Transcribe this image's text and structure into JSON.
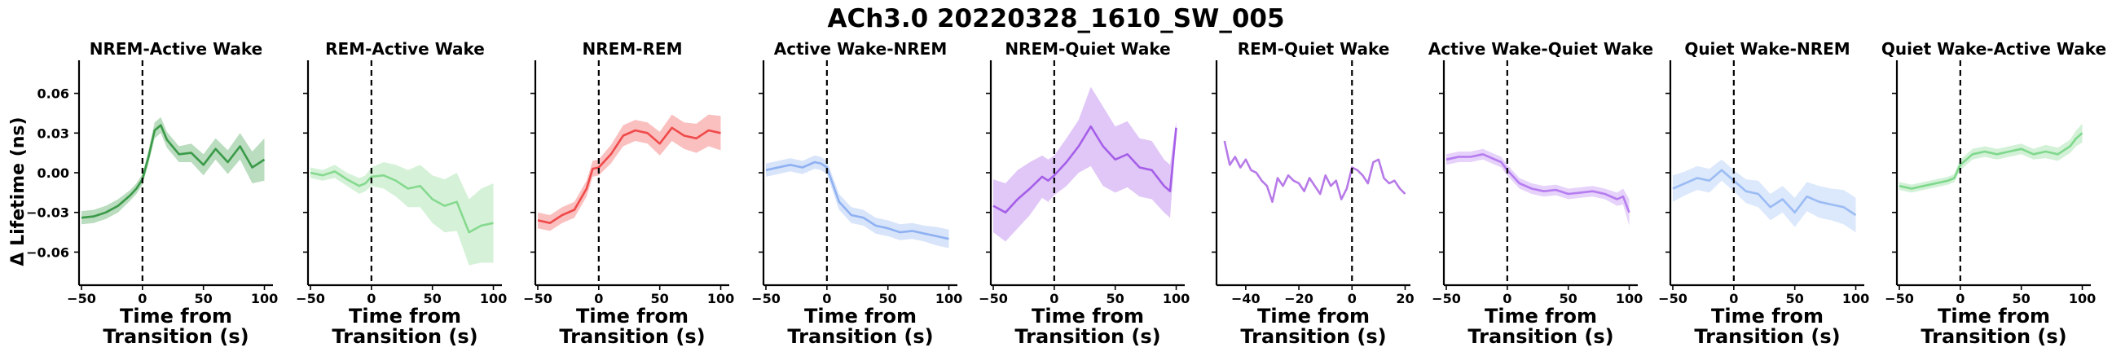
{
  "figure": {
    "title": "ACh3.0 20220328_1610_SW_005",
    "ylabel": "Δ Lifetime (ns)",
    "xlabel_line1": "Time from",
    "xlabel_line2": "Transition (s)"
  },
  "chart_data": [
    {
      "type": "line",
      "title": "NREM-Active Wake",
      "color": "#3a9a48",
      "xlim": [
        -52,
        107
      ],
      "ylim": [
        -0.085,
        0.085
      ],
      "xticks": [
        -50,
        0,
        50,
        100
      ],
      "yticks": [
        -0.06,
        -0.03,
        0.0,
        0.03,
        0.06
      ],
      "ytick_labels": [
        "−0.06",
        "−0.03",
        "0.00",
        "0.03",
        "0.06"
      ],
      "transition_x": 0,
      "x": [
        -50,
        -40,
        -30,
        -20,
        -10,
        -5,
        0,
        5,
        10,
        15,
        20,
        30,
        40,
        50,
        60,
        70,
        80,
        90,
        100
      ],
      "values": [
        -0.034,
        -0.033,
        -0.03,
        -0.025,
        -0.017,
        -0.012,
        -0.005,
        0.012,
        0.032,
        0.036,
        0.025,
        0.014,
        0.015,
        0.006,
        0.018,
        0.008,
        0.02,
        0.004,
        0.01
      ],
      "error": [
        0.005,
        0.005,
        0.005,
        0.005,
        0.004,
        0.004,
        0.004,
        0.005,
        0.006,
        0.006,
        0.006,
        0.006,
        0.007,
        0.008,
        0.008,
        0.009,
        0.01,
        0.012,
        0.016
      ]
    },
    {
      "type": "line",
      "title": "REM-Active Wake",
      "color": "#86d98f",
      "xlim": [
        -52,
        107
      ],
      "ylim": [
        -0.085,
        0.085
      ],
      "xticks": [
        -50,
        0,
        50,
        100
      ],
      "yticks": [
        -0.06,
        -0.03,
        0.0,
        0.03,
        0.06
      ],
      "ytick_labels": [
        "",
        "",
        "",
        "",
        ""
      ],
      "transition_x": 0,
      "x": [
        -50,
        -40,
        -30,
        -20,
        -10,
        -5,
        0,
        10,
        20,
        30,
        40,
        50,
        60,
        70,
        80,
        90,
        100
      ],
      "values": [
        0.0,
        -0.002,
        0.001,
        -0.005,
        -0.01,
        -0.008,
        -0.003,
        -0.002,
        -0.006,
        -0.012,
        -0.01,
        -0.02,
        -0.025,
        -0.022,
        -0.045,
        -0.04,
        -0.038
      ],
      "error": [
        0.004,
        0.004,
        0.005,
        0.005,
        0.006,
        0.006,
        0.007,
        0.01,
        0.012,
        0.014,
        0.016,
        0.018,
        0.02,
        0.022,
        0.025,
        0.028,
        0.03
      ]
    },
    {
      "type": "line",
      "title": "NREM-REM",
      "color": "#f04a4a",
      "xlim": [
        -52,
        107
      ],
      "ylim": [
        -0.085,
        0.085
      ],
      "xticks": [
        -50,
        0,
        50,
        100
      ],
      "yticks": [
        -0.06,
        -0.03,
        0.0,
        0.03,
        0.06
      ],
      "ytick_labels": [
        "",
        "",
        "",
        "",
        ""
      ],
      "transition_x": 0,
      "x": [
        -50,
        -40,
        -30,
        -20,
        -10,
        -5,
        0,
        10,
        20,
        30,
        40,
        50,
        60,
        70,
        80,
        90,
        100
      ],
      "values": [
        -0.036,
        -0.038,
        -0.032,
        -0.028,
        -0.012,
        0.003,
        0.004,
        0.014,
        0.028,
        0.032,
        0.03,
        0.022,
        0.034,
        0.028,
        0.026,
        0.032,
        0.03
      ],
      "error": [
        0.006,
        0.006,
        0.006,
        0.006,
        0.006,
        0.006,
        0.006,
        0.007,
        0.008,
        0.008,
        0.008,
        0.009,
        0.01,
        0.01,
        0.011,
        0.012,
        0.013
      ]
    },
    {
      "type": "line",
      "title": "Active Wake-NREM",
      "color": "#8fb1f2",
      "xlim": [
        -52,
        107
      ],
      "ylim": [
        -0.085,
        0.085
      ],
      "xticks": [
        -50,
        0,
        50,
        100
      ],
      "yticks": [
        -0.06,
        -0.03,
        0.0,
        0.03,
        0.06
      ],
      "ytick_labels": [
        "",
        "",
        "",
        "",
        ""
      ],
      "transition_x": 0,
      "x": [
        -50,
        -40,
        -30,
        -20,
        -10,
        -5,
        0,
        10,
        20,
        30,
        40,
        50,
        60,
        70,
        80,
        90,
        100
      ],
      "values": [
        0.002,
        0.004,
        0.006,
        0.004,
        0.008,
        0.007,
        0.004,
        -0.022,
        -0.032,
        -0.034,
        -0.04,
        -0.042,
        -0.045,
        -0.044,
        -0.046,
        -0.048,
        -0.05
      ],
      "error": [
        0.005,
        0.005,
        0.005,
        0.005,
        0.005,
        0.005,
        0.005,
        0.006,
        0.006,
        0.006,
        0.006,
        0.006,
        0.006,
        0.006,
        0.006,
        0.007,
        0.007
      ]
    },
    {
      "type": "line",
      "title": "NREM-Quiet Wake",
      "color": "#a55ee8",
      "xlim": [
        -52,
        107
      ],
      "ylim": [
        -0.085,
        0.085
      ],
      "xticks": [
        -50,
        0,
        50,
        100
      ],
      "yticks": [
        -0.06,
        -0.03,
        0.0,
        0.03,
        0.06
      ],
      "ytick_labels": [
        "",
        "",
        "",
        "",
        ""
      ],
      "transition_x": 0,
      "x": [
        -50,
        -40,
        -30,
        -20,
        -10,
        -5,
        0,
        10,
        20,
        30,
        40,
        50,
        60,
        70,
        80,
        90,
        95,
        100
      ],
      "values": [
        -0.025,
        -0.03,
        -0.02,
        -0.012,
        -0.003,
        -0.006,
        -0.002,
        0.008,
        0.02,
        0.035,
        0.02,
        0.01,
        0.014,
        0.004,
        0.002,
        -0.01,
        -0.014,
        0.034
      ],
      "error": [
        0.02,
        0.022,
        0.022,
        0.02,
        0.016,
        0.016,
        0.015,
        0.018,
        0.02,
        0.03,
        0.03,
        0.025,
        0.025,
        0.022,
        0.022,
        0.02,
        0.02,
        0.005
      ]
    },
    {
      "type": "line",
      "title": "REM-Quiet Wake",
      "color": "#b77ae8",
      "xlim": [
        -51,
        22
      ],
      "ylim": [
        -0.085,
        0.085
      ],
      "xticks": [
        -40,
        -20,
        0,
        20
      ],
      "yticks": [
        -0.06,
        -0.03,
        0.0,
        0.03,
        0.06
      ],
      "ytick_labels": [
        "",
        "",
        "",
        "",
        ""
      ],
      "transition_x": 0,
      "x": [
        -48,
        -46,
        -44,
        -42,
        -40,
        -38,
        -36,
        -34,
        -32,
        -30,
        -28,
        -26,
        -24,
        -22,
        -20,
        -18,
        -16,
        -14,
        -12,
        -10,
        -8,
        -6,
        -4,
        -2,
        0,
        2,
        4,
        6,
        8,
        10,
        12,
        14,
        16,
        18,
        20
      ],
      "values": [
        0.024,
        0.006,
        0.012,
        0.004,
        0.01,
        0.002,
        0.0,
        -0.006,
        -0.01,
        -0.022,
        -0.004,
        -0.01,
        -0.002,
        -0.006,
        -0.008,
        -0.014,
        -0.004,
        -0.01,
        -0.016,
        -0.002,
        -0.01,
        -0.006,
        -0.02,
        -0.012,
        0.004,
        0.002,
        -0.002,
        -0.008,
        0.008,
        0.01,
        -0.004,
        -0.008,
        -0.006,
        -0.012,
        -0.016
      ],
      "error": []
    },
    {
      "type": "line",
      "title": "Active Wake-Quiet Wake",
      "color": "#b67df0",
      "xlim": [
        -52,
        107
      ],
      "ylim": [
        -0.085,
        0.085
      ],
      "xticks": [
        -50,
        0,
        50,
        100
      ],
      "yticks": [
        -0.06,
        -0.03,
        0.0,
        0.03,
        0.06
      ],
      "ytick_labels": [
        "",
        "",
        "",
        "",
        ""
      ],
      "transition_x": 0,
      "x": [
        -50,
        -40,
        -30,
        -20,
        -10,
        -5,
        0,
        10,
        20,
        30,
        40,
        50,
        60,
        70,
        80,
        90,
        95,
        100
      ],
      "values": [
        0.01,
        0.012,
        0.012,
        0.014,
        0.01,
        0.008,
        0.002,
        -0.008,
        -0.012,
        -0.014,
        -0.013,
        -0.016,
        -0.015,
        -0.014,
        -0.016,
        -0.02,
        -0.018,
        -0.03
      ],
      "error": [
        0.004,
        0.004,
        0.004,
        0.004,
        0.004,
        0.004,
        0.004,
        0.004,
        0.004,
        0.004,
        0.004,
        0.004,
        0.004,
        0.004,
        0.004,
        0.005,
        0.006,
        0.01
      ]
    },
    {
      "type": "line",
      "title": "Quiet Wake-NREM",
      "color": "#9bbcf4",
      "xlim": [
        -52,
        107
      ],
      "ylim": [
        -0.085,
        0.085
      ],
      "xticks": [
        -50,
        0,
        50,
        100
      ],
      "yticks": [
        -0.06,
        -0.03,
        0.0,
        0.03,
        0.06
      ],
      "ytick_labels": [
        "",
        "",
        "",
        "",
        ""
      ],
      "transition_x": 0,
      "x": [
        -50,
        -40,
        -30,
        -20,
        -10,
        -5,
        0,
        10,
        20,
        30,
        40,
        50,
        60,
        70,
        80,
        90,
        100
      ],
      "values": [
        -0.012,
        -0.008,
        -0.004,
        -0.006,
        0.002,
        -0.002,
        -0.006,
        -0.014,
        -0.016,
        -0.026,
        -0.02,
        -0.03,
        -0.018,
        -0.022,
        -0.024,
        -0.026,
        -0.032
      ],
      "error": [
        0.01,
        0.009,
        0.009,
        0.009,
        0.008,
        0.008,
        0.008,
        0.009,
        0.01,
        0.01,
        0.01,
        0.011,
        0.011,
        0.012,
        0.012,
        0.013,
        0.013
      ]
    },
    {
      "type": "line",
      "title": "Quiet Wake-Active Wake",
      "color": "#7fd88c",
      "xlim": [
        -52,
        107
      ],
      "ylim": [
        -0.085,
        0.085
      ],
      "xticks": [
        -50,
        0,
        50,
        100
      ],
      "yticks": [
        -0.06,
        -0.03,
        0.0,
        0.03,
        0.06
      ],
      "ytick_labels": [
        "",
        "",
        "",
        "",
        ""
      ],
      "transition_x": 0,
      "x": [
        -50,
        -40,
        -30,
        -20,
        -10,
        -5,
        0,
        10,
        20,
        30,
        40,
        50,
        60,
        70,
        80,
        90,
        95,
        100
      ],
      "values": [
        -0.01,
        -0.012,
        -0.01,
        -0.008,
        -0.006,
        -0.004,
        0.006,
        0.014,
        0.016,
        0.014,
        0.016,
        0.018,
        0.014,
        0.016,
        0.014,
        0.02,
        0.026,
        0.03
      ],
      "error": [
        0.003,
        0.003,
        0.003,
        0.003,
        0.003,
        0.003,
        0.004,
        0.004,
        0.004,
        0.004,
        0.004,
        0.004,
        0.004,
        0.005,
        0.005,
        0.005,
        0.006,
        0.007
      ]
    }
  ]
}
